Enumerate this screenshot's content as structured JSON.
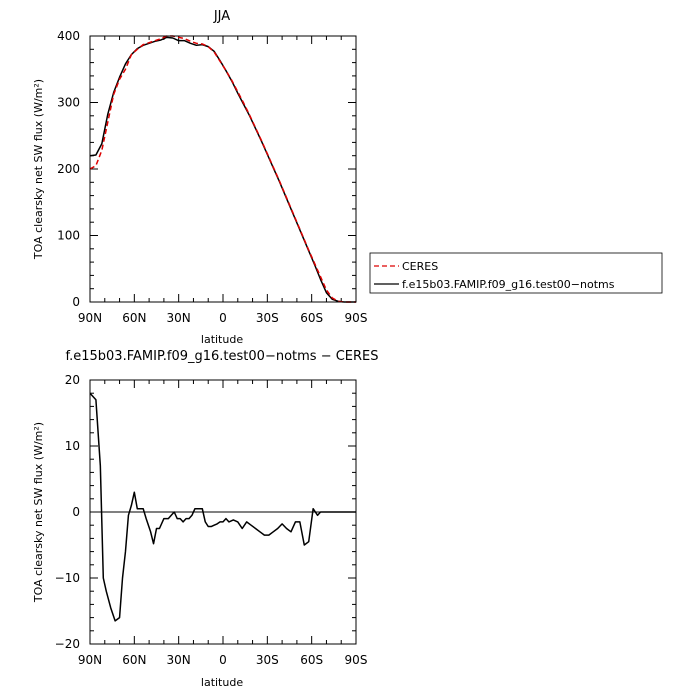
{
  "chart_data": [
    {
      "type": "line",
      "title": "JJA",
      "xlabel": "latitude",
      "ylabel": "TOA clearsky net SW flux (W/m²)",
      "xlim": [
        90,
        -90
      ],
      "ylim": [
        0,
        400
      ],
      "x_tick_values": [
        90,
        60,
        30,
        0,
        -30,
        -60,
        -90
      ],
      "x_tick_labels": [
        "90N",
        "60N",
        "30N",
        "0",
        "30S",
        "60S",
        "90S"
      ],
      "y_tick_values": [
        0,
        100,
        200,
        300,
        400
      ],
      "y_tick_labels": [
        "0",
        "100",
        "200",
        "300",
        "400"
      ],
      "legend": {
        "placement": "right",
        "outside": true
      },
      "series": [
        {
          "name": "CERES",
          "color": "#dd0000",
          "dash": "dashed",
          "x": [
            90,
            86,
            82,
            78,
            74,
            70,
            66,
            62,
            58,
            54,
            50,
            46,
            42,
            38,
            34,
            30,
            26,
            22,
            18,
            14,
            10,
            6,
            2,
            -2,
            -6,
            -10,
            -14,
            -18,
            -22,
            -26,
            -30,
            -34,
            -38,
            -42,
            -46,
            -50,
            -54,
            -58,
            -62,
            -66,
            -70,
            -74,
            -78,
            -82,
            -86,
            -90
          ],
          "y": [
            200,
            205,
            228,
            270,
            312,
            335,
            350,
            372,
            380,
            387,
            390,
            393,
            396,
            400,
            400,
            398,
            396,
            392,
            389,
            388,
            384,
            376,
            362,
            348,
            333,
            316,
            299,
            281,
            262,
            243,
            223,
            203,
            183,
            162,
            141,
            120,
            99,
            78,
            58,
            38,
            18,
            6,
            1,
            0,
            0,
            0
          ]
        },
        {
          "name": "f.e15b03.FAMIP.f09_g16.test00−notms",
          "color": "#000000",
          "dash": "solid",
          "x": [
            90,
            86,
            82,
            78,
            74,
            70,
            66,
            62,
            58,
            54,
            50,
            46,
            42,
            38,
            34,
            30,
            26,
            22,
            18,
            14,
            10,
            6,
            2,
            -2,
            -6,
            -10,
            -14,
            -18,
            -22,
            -26,
            -30,
            -34,
            -38,
            -42,
            -46,
            -50,
            -54,
            -58,
            -62,
            -66,
            -70,
            -74,
            -78,
            -82,
            -86,
            -90
          ],
          "y": [
            220,
            221,
            238,
            282,
            315,
            338,
            358,
            372,
            381,
            386,
            389,
            392,
            394,
            398,
            397,
            393,
            393,
            389,
            386,
            387,
            384,
            377,
            363,
            348,
            332,
            314,
            297,
            280,
            261,
            242,
            222,
            202,
            182,
            161,
            140,
            119,
            98,
            77,
            56,
            34,
            14,
            4,
            1,
            0,
            0,
            0
          ]
        }
      ]
    },
    {
      "type": "line",
      "title": "f.e15b03.FAMIP.f09_g16.test00−notms − CERES",
      "xlabel": "latitude",
      "ylabel": "TOA clearsky net SW flux (W/m²)",
      "xlim": [
        90,
        -90
      ],
      "ylim": [
        -20,
        20
      ],
      "x_tick_values": [
        90,
        60,
        30,
        0,
        -30,
        -60,
        -90
      ],
      "x_tick_labels": [
        "90N",
        "60N",
        "30N",
        "0",
        "30S",
        "60S",
        "90S"
      ],
      "y_tick_values": [
        -20,
        -10,
        0,
        10,
        20
      ],
      "y_tick_labels": [
        "−20",
        "−10",
        "0",
        "10",
        "20"
      ],
      "series": [
        {
          "color": "#000000",
          "x": [
            90,
            88,
            86,
            83,
            81,
            79,
            76,
            73,
            70,
            68,
            66,
            64,
            62,
            60,
            58,
            56,
            54,
            52,
            49,
            47,
            45,
            43,
            40,
            37,
            35,
            33,
            31,
            29,
            27,
            25,
            23,
            21,
            19,
            16,
            14,
            12,
            10,
            8,
            6,
            4,
            2,
            0,
            -2,
            -4,
            -7,
            -10,
            -13,
            -16,
            -19,
            -22,
            -25,
            -28,
            -31,
            -34,
            -37,
            -40,
            -43,
            -46,
            -49,
            -52,
            -55,
            -58,
            -61,
            -64,
            -66,
            -68,
            -70,
            -72,
            -74,
            -77,
            -80,
            -83,
            -86,
            -90
          ],
          "y": [
            18,
            17.5,
            17,
            7,
            -10,
            -12,
            -14.5,
            -16.5,
            -16,
            -10,
            -6,
            -0.5,
            1,
            3,
            0.5,
            0.5,
            0.5,
            -1,
            -3,
            -4.8,
            -2.5,
            -2.5,
            -1,
            -1,
            -0.5,
            0,
            -1,
            -1,
            -1.5,
            -1,
            -1,
            -0.5,
            0.5,
            0.5,
            0.5,
            -1.5,
            -2.2,
            -2.2,
            -2,
            -1.8,
            -1.5,
            -1.5,
            -1,
            -1.5,
            -1.2,
            -1.5,
            -2.5,
            -1.5,
            -2,
            -2.5,
            -3,
            -3.5,
            -3.5,
            -3,
            -2.5,
            -1.8,
            -2.5,
            -3,
            -1.5,
            -1.5,
            -5,
            -4.5,
            0.5,
            -0.5,
            0,
            0,
            0,
            0,
            0,
            0,
            0,
            0,
            0,
            0
          ]
        }
      ]
    }
  ]
}
